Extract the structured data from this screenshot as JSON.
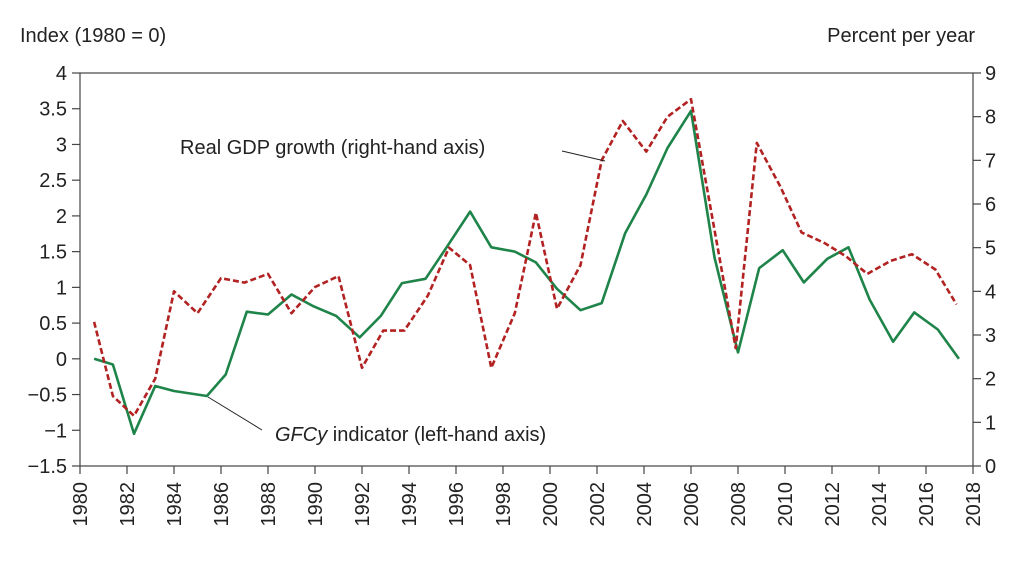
{
  "chart_data": {
    "type": "line",
    "left_axis_label": "Index (1980 = 0)",
    "right_axis_label": "Percent per year",
    "left_ylim": [
      -1.5,
      4
    ],
    "right_ylim": [
      0,
      9
    ],
    "left_ticks": [
      "4",
      "3.5",
      "3",
      "2.5",
      "2",
      "1.5",
      "1",
      "0.5",
      "0",
      "−0.5",
      "−1",
      "−1.5"
    ],
    "left_tick_values": [
      4,
      3.5,
      3,
      2.5,
      2,
      1.5,
      1,
      0.5,
      0,
      -0.5,
      -1,
      -1.5
    ],
    "right_ticks": [
      "9",
      "8",
      "7",
      "6",
      "5",
      "4",
      "3",
      "2",
      "1",
      "0"
    ],
    "right_tick_values": [
      9,
      8,
      7,
      6,
      5,
      4,
      3,
      2,
      1,
      0
    ],
    "x_ticks": [
      "1980",
      "1982",
      "1984",
      "1986",
      "1988",
      "1990",
      "1992",
      "1994",
      "1996",
      "1998",
      "2000",
      "2002",
      "2004",
      "2006",
      "2008",
      "2010",
      "2012",
      "2014",
      "2016",
      "2018"
    ],
    "x_tick_values": [
      1980,
      1982,
      1984,
      1986,
      1988,
      1990,
      1992,
      1994,
      1996,
      1998,
      2000,
      2002,
      2004,
      2006,
      2008,
      2010,
      2012,
      2014,
      2016,
      2018
    ],
    "xlim": [
      1980,
      2018
    ],
    "x": [
      1980.6,
      1981.4,
      1982.3,
      1983.2,
      1984.0,
      1984.9,
      1985.8,
      1986.7,
      1987.5,
      1988.4,
      1989.3,
      1990.1,
      1991.0,
      1991.9,
      1992.8,
      1993.6,
      1994.5,
      1995.4,
      1996.3,
      1997.1,
      1998.0,
      1998.9,
      1999.8,
      2000.6,
      2001.5,
      2002.4,
      2003.3,
      2004.1,
      2005.0,
      2005.9,
      2006.8,
      2007.6,
      2008.5,
      2009.4,
      2010.3,
      2011.1,
      2012.0,
      2012.9,
      2013.7,
      2014.6,
      2015.5,
      2016.4
    ],
    "series": [
      {
        "name": "GFCy indicator (left-hand axis)",
        "axis": "left",
        "color": "#1e8449",
        "style": "solid",
        "x": [
          1980.6,
          1981.4,
          1982.3,
          1983.2,
          1984.0,
          1985.4,
          1986.2,
          1987.1,
          1988.0,
          1989.0,
          1989.9,
          1990.9,
          1991.9,
          1992.8,
          1993.7,
          1994.7,
          1995.6,
          1996.6,
          1997.5,
          1998.5,
          1999.4,
          2000.3,
          2001.3,
          2002.2,
          2003.2,
          2004.1,
          2005.0,
          2006.0,
          2007.0,
          2008.0,
          2008.9,
          2009.9,
          2010.8,
          2011.8,
          2012.7,
          2013.6,
          2014.6,
          2015.5,
          2016.5,
          2017.4
        ],
        "values": [
          0.0,
          -0.08,
          -1.05,
          -0.38,
          -0.45,
          -0.52,
          -0.22,
          0.66,
          0.62,
          0.9,
          0.74,
          0.6,
          0.3,
          0.6,
          1.06,
          1.12,
          1.56,
          2.06,
          1.56,
          1.5,
          1.35,
          0.98,
          0.68,
          0.78,
          1.76,
          2.3,
          2.95,
          3.47,
          1.42,
          0.09,
          1.27,
          1.52,
          1.07,
          1.4,
          1.56,
          0.83,
          0.24,
          0.65,
          0.41,
          0.0
        ]
      },
      {
        "name": "Real GDP growth (right-hand axis)",
        "axis": "right",
        "color": "#b22222",
        "style": "dashed",
        "x": [
          1980.6,
          1981.4,
          1982.3,
          1983.2,
          1984.0,
          1985.0,
          1986.0,
          1987.0,
          1988.0,
          1989.0,
          1990.0,
          1991.0,
          1992.0,
          1992.9,
          1993.8,
          1994.8,
          1995.7,
          1996.6,
          1997.5,
          1998.5,
          1999.4,
          2000.3,
          2001.3,
          2002.2,
          2003.1,
          2004.1,
          2005.0,
          2006.0,
          2006.9,
          2007.9,
          2008.8,
          2009.8,
          2010.7,
          2011.7,
          2012.6,
          2013.5,
          2014.5,
          2015.4,
          2016.4,
          2017.3
        ],
        "values": [
          3.3,
          1.6,
          1.15,
          2.0,
          4.0,
          3.5,
          4.3,
          4.2,
          4.4,
          3.5,
          4.1,
          4.35,
          2.25,
          3.1,
          3.1,
          3.9,
          5.0,
          4.6,
          2.25,
          3.5,
          5.8,
          3.6,
          4.6,
          7.0,
          7.9,
          7.2,
          8.0,
          8.4,
          5.7,
          2.7,
          7.4,
          6.4,
          5.35,
          5.1,
          4.8,
          4.4,
          4.7,
          4.85,
          4.5,
          3.7
        ]
      }
    ],
    "annotations": {
      "gdp_label": "Real GDP growth (right-hand axis)",
      "gfcy_label_italic": "GFCy",
      "gfcy_label_rest": " indicator (left-hand axis)"
    }
  }
}
